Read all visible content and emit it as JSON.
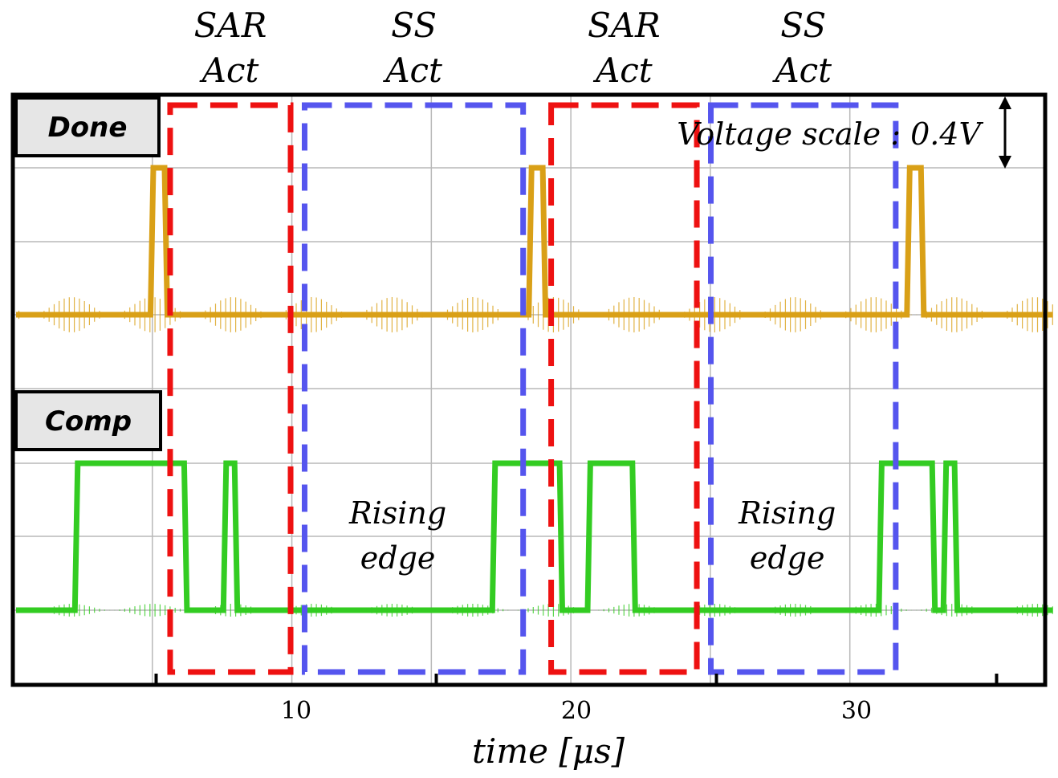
{
  "chart_data": {
    "type": "line",
    "xlabel": "time [μs]",
    "xlim": [
      0,
      37
    ],
    "xticks": [
      10,
      20,
      30
    ],
    "x_minor_ticks": [
      5,
      15,
      25,
      35
    ],
    "grid": true,
    "scale_note": "Voltage scale : 0.4V",
    "series": [
      {
        "name": "Done",
        "color": "#d9a017",
        "baseline_level": 0,
        "high_level": 1,
        "x": [
          0,
          4.8,
          4.9,
          5.3,
          5.4,
          18.3,
          18.4,
          18.8,
          18.9,
          31.8,
          31.9,
          32.3,
          32.4,
          37
        ],
        "y": [
          0,
          0,
          1,
          1,
          0,
          0,
          1,
          1,
          0,
          0,
          1,
          1,
          0,
          0
        ]
      },
      {
        "name": "Comp",
        "color": "#33cc22",
        "baseline_level": 0,
        "high_level": 1,
        "x": [
          0,
          2.1,
          2.2,
          6.0,
          6.1,
          7.4,
          7.5,
          7.8,
          7.9,
          17.0,
          17.1,
          19.4,
          19.5,
          20.4,
          20.5,
          22.0,
          22.1,
          30.8,
          30.9,
          32.7,
          32.8,
          33.1,
          33.2,
          33.5,
          33.6,
          37
        ],
        "y": [
          0,
          0,
          1,
          1,
          0,
          0,
          1,
          1,
          0,
          0,
          1,
          1,
          0,
          0,
          1,
          1,
          0,
          0,
          1,
          1,
          0,
          0,
          1,
          1,
          0,
          0
        ]
      }
    ],
    "phases": [
      {
        "label_line1": "SAR",
        "label_line2": "Act",
        "x_start": 5.5,
        "x_end": 9.8,
        "color": "#ee1111",
        "note": ""
      },
      {
        "label_line1": "SS",
        "label_line2": "Act",
        "x_start": 10.3,
        "x_end": 18.1,
        "color": "#5555ee",
        "note_line1": "Rising",
        "note_line2": "edge"
      },
      {
        "label_line1": "SAR",
        "label_line2": "Act",
        "x_start": 19.1,
        "x_end": 24.3,
        "color": "#ee1111",
        "note": ""
      },
      {
        "label_line1": "SS",
        "label_line2": "Act",
        "x_start": 24.8,
        "x_end": 31.4,
        "color": "#5555ee",
        "note_line1": "Rising",
        "note_line2": "edge"
      }
    ]
  }
}
